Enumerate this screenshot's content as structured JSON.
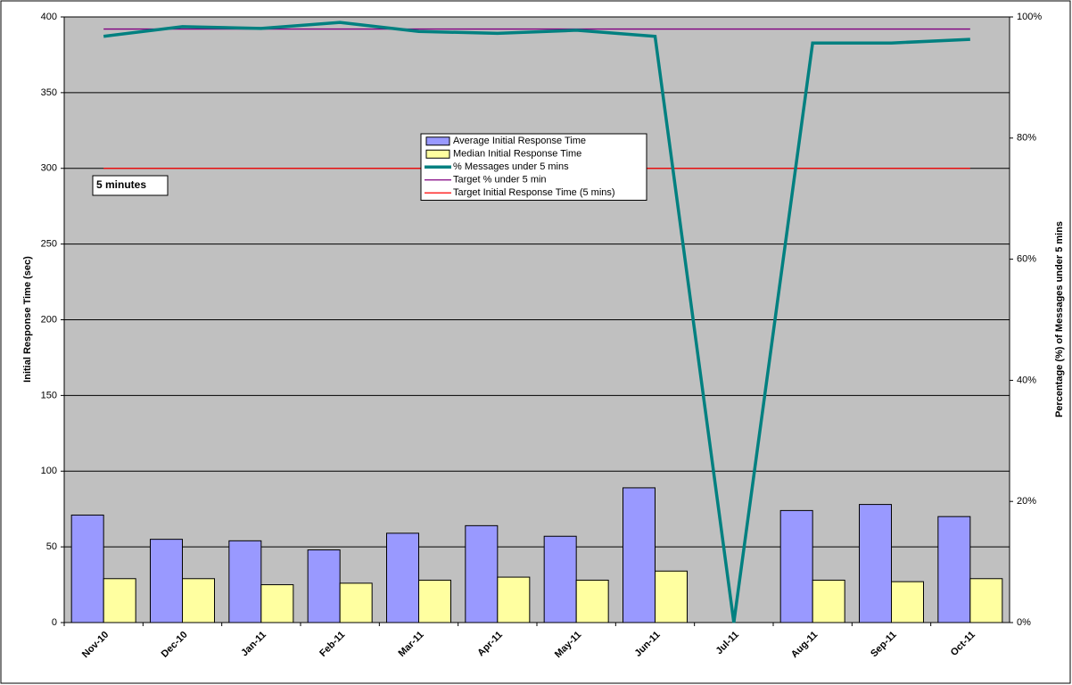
{
  "chart_data": {
    "type": "bar",
    "y_label": "Initial Response Time (sec)",
    "y2_label": "Percentage (%) of Messages under 5 mins",
    "annotation": "5 minutes",
    "categories": [
      "Nov-10",
      "Dec-10",
      "Jan-11",
      "Feb-11",
      "Mar-11",
      "Apr-11",
      "May-11",
      "Jun-11",
      "Jul-11",
      "Aug-11",
      "Sep-11",
      "Oct-11"
    ],
    "series": [
      {
        "name": "Average Initial Response Time",
        "type": "bar",
        "color": "#9999ff",
        "values": [
          71,
          55,
          54,
          48,
          59,
          64,
          57,
          89,
          null,
          74,
          78,
          70
        ]
      },
      {
        "name": "Median Initial Response Time",
        "type": "bar",
        "color": "#ffffa0",
        "values": [
          29,
          29,
          25,
          26,
          28,
          30,
          28,
          34,
          null,
          28,
          27,
          29
        ]
      },
      {
        "name": "% Messages under 5 mins",
        "type": "line",
        "axis": "y2",
        "color": "#008080",
        "values": [
          96.8,
          98.4,
          98.1,
          99.1,
          97.6,
          97.3,
          97.8,
          96.8,
          0,
          95.7,
          95.7,
          96.3
        ]
      },
      {
        "name": "Target % under 5 min",
        "type": "target",
        "axis": "y2",
        "color": "#800080",
        "value": 98
      },
      {
        "name": "Target Initial Response Time (5 mins)",
        "type": "target",
        "color": "#ff0000",
        "value": 300
      }
    ],
    "ylim": [
      0,
      400
    ],
    "yticks": [
      0,
      50,
      100,
      150,
      200,
      250,
      300,
      350,
      400
    ],
    "y2lim": [
      0,
      100
    ],
    "y2ticks": [
      {
        "value": 0,
        "label": "0%"
      },
      {
        "value": 20,
        "label": "20%"
      },
      {
        "value": 40,
        "label": "40%"
      },
      {
        "value": 60,
        "label": "60%"
      },
      {
        "value": 80,
        "label": "80%"
      },
      {
        "value": 100,
        "label": "100%"
      }
    ],
    "grid": true
  }
}
